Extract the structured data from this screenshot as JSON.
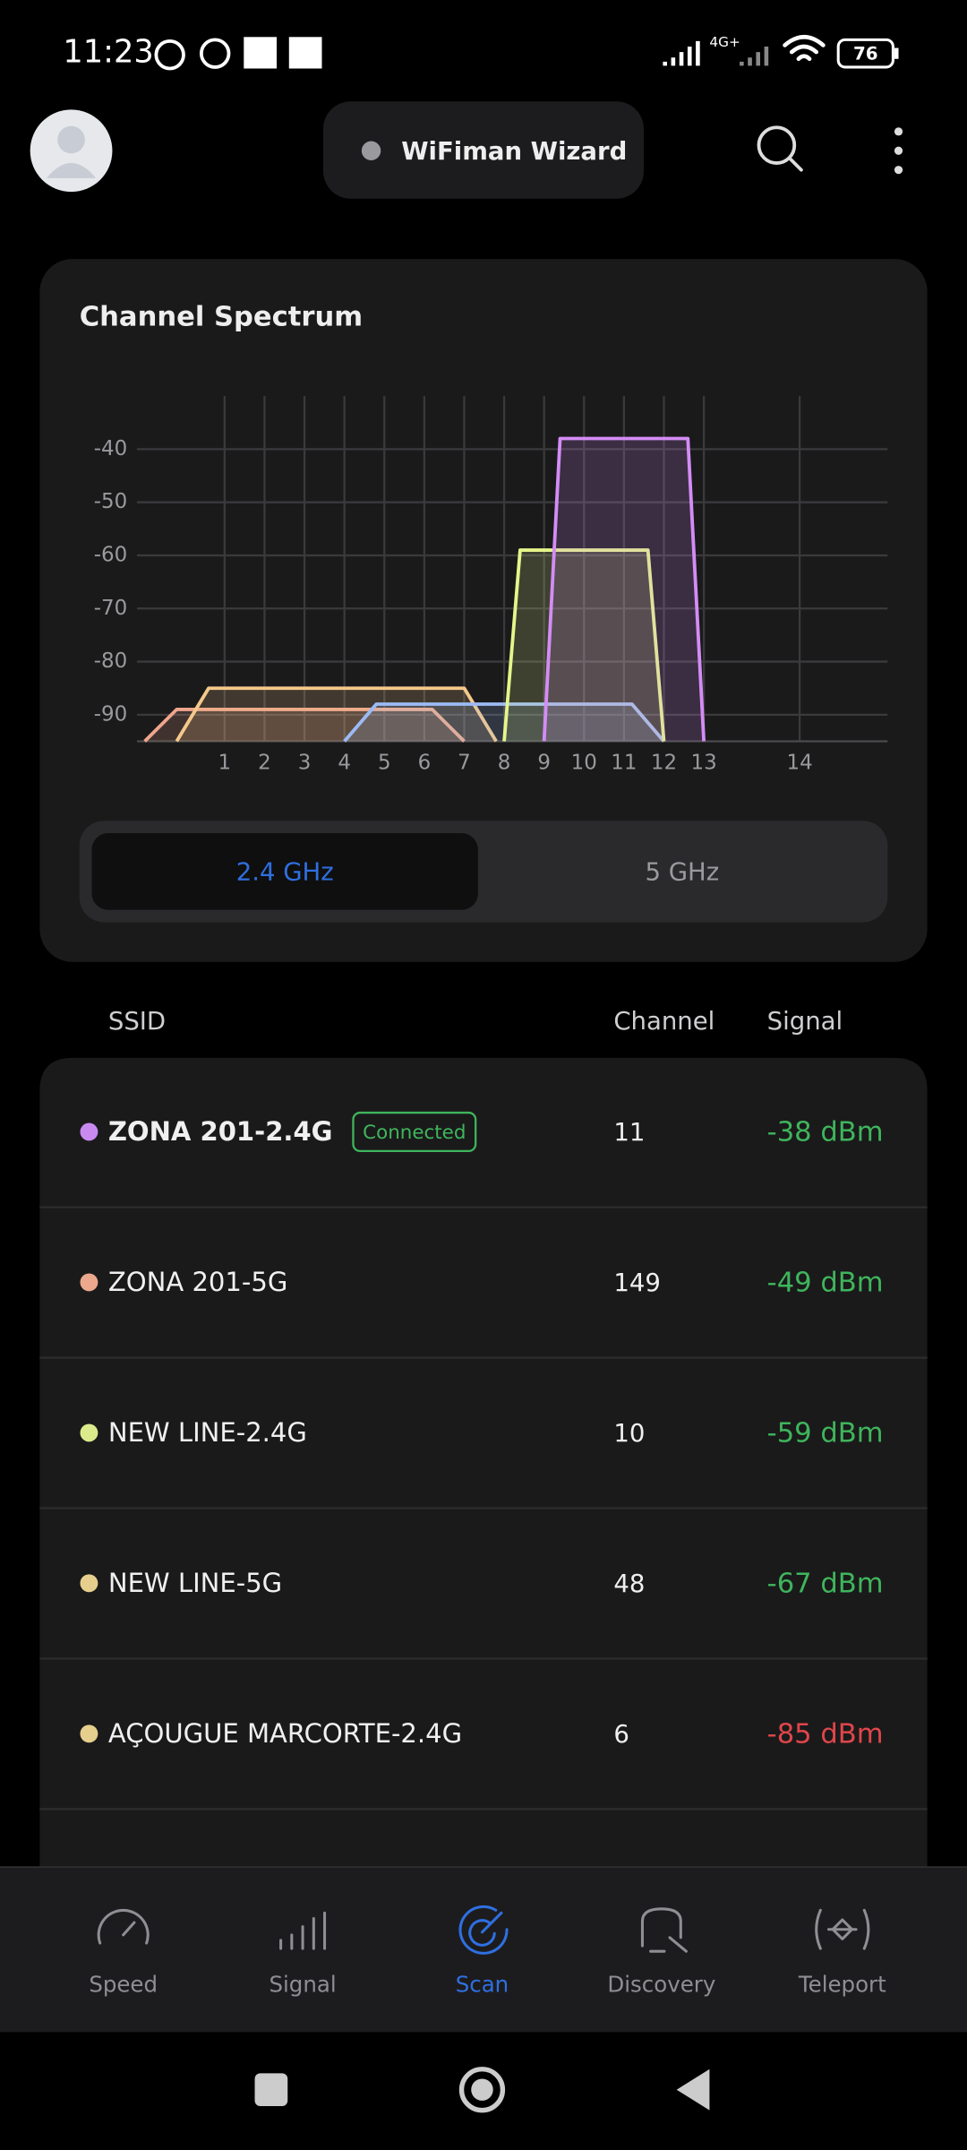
{
  "status_bar": {
    "time": "11:23",
    "network": "4G+",
    "battery": "76"
  },
  "header": {
    "title": "WiFiman Wizard"
  },
  "chart_data": {
    "type": "area",
    "title": "Channel Spectrum",
    "xlim": [
      2400,
      2495
    ],
    "ylim": [
      -95,
      -30
    ],
    "xticks": [
      {
        "value": 2412,
        "label": "1"
      },
      {
        "value": 2417,
        "label": "2"
      },
      {
        "value": 2422,
        "label": "3"
      },
      {
        "value": 2427,
        "label": "4"
      },
      {
        "value": 2432,
        "label": "5"
      },
      {
        "value": 2437,
        "label": "6"
      },
      {
        "value": 2442,
        "label": "7"
      },
      {
        "value": 2447,
        "label": "8"
      },
      {
        "value": 2452,
        "label": "9"
      },
      {
        "value": 2457,
        "label": "10"
      },
      {
        "value": 2462,
        "label": "11"
      },
      {
        "value": 2467,
        "label": "12"
      },
      {
        "value": 2472,
        "label": "13"
      },
      {
        "value": 2484,
        "label": "14"
      }
    ],
    "yticks": [
      -40,
      -50,
      -60,
      -70,
      -80,
      -90
    ],
    "grid": true,
    "series": [
      {
        "color": "#f0a58c",
        "x": [
          2402,
          2406,
          2438,
          2442
        ],
        "values": [
          -95,
          -89,
          -89,
          -95
        ]
      },
      {
        "color": "#f5c98a",
        "x": [
          2406,
          2410,
          2442,
          2446
        ],
        "values": [
          -95,
          -85,
          -85,
          -95
        ]
      },
      {
        "color": "#9cbaf5",
        "x": [
          2427,
          2431,
          2463,
          2467
        ],
        "values": [
          -95,
          -88,
          -88,
          -95
        ]
      },
      {
        "color": "#e6f58a",
        "x": [
          2447,
          2449,
          2465,
          2467
        ],
        "values": [
          -95,
          -59,
          -59,
          -95
        ]
      },
      {
        "color": "#d48cf5",
        "x": [
          2452,
          2454,
          2470,
          2472
        ],
        "values": [
          -95,
          -38,
          -38,
          -95
        ]
      }
    ]
  },
  "band_tabs": {
    "items": [
      "2.4 GHz",
      "5 GHz"
    ],
    "active": 0
  },
  "table": {
    "columns": [
      "SSID",
      "Channel",
      "Signal"
    ],
    "rows": [
      {
        "color": "#c98af0",
        "ssid": "ZONA 201-2.4G",
        "badge": "Connected",
        "channel": "11",
        "signal": "-38 dBm",
        "signal_color": "#3fb55c"
      },
      {
        "color": "#eba88c",
        "ssid": "ZONA 201-5G",
        "channel": "149",
        "signal": "-49 dBm",
        "signal_color": "#3fb55c"
      },
      {
        "color": "#dbeb8c",
        "ssid": "NEW LINE-2.4G",
        "channel": "10",
        "signal": "-59 dBm",
        "signal_color": "#3fb55c"
      },
      {
        "color": "#e6cf8c",
        "ssid": "NEW LINE-5G",
        "channel": "48",
        "signal": "-67 dBm",
        "signal_color": "#3fb55c"
      },
      {
        "color": "#e6cf8c",
        "ssid": "AÇOUGUE MARCORTE-2.4G",
        "channel": "6",
        "signal": "-85 dBm",
        "signal_color": "#e0464a"
      }
    ]
  },
  "nav": {
    "items": [
      "Speed",
      "Signal",
      "Scan",
      "Discovery",
      "Teleport"
    ],
    "active": 2
  }
}
